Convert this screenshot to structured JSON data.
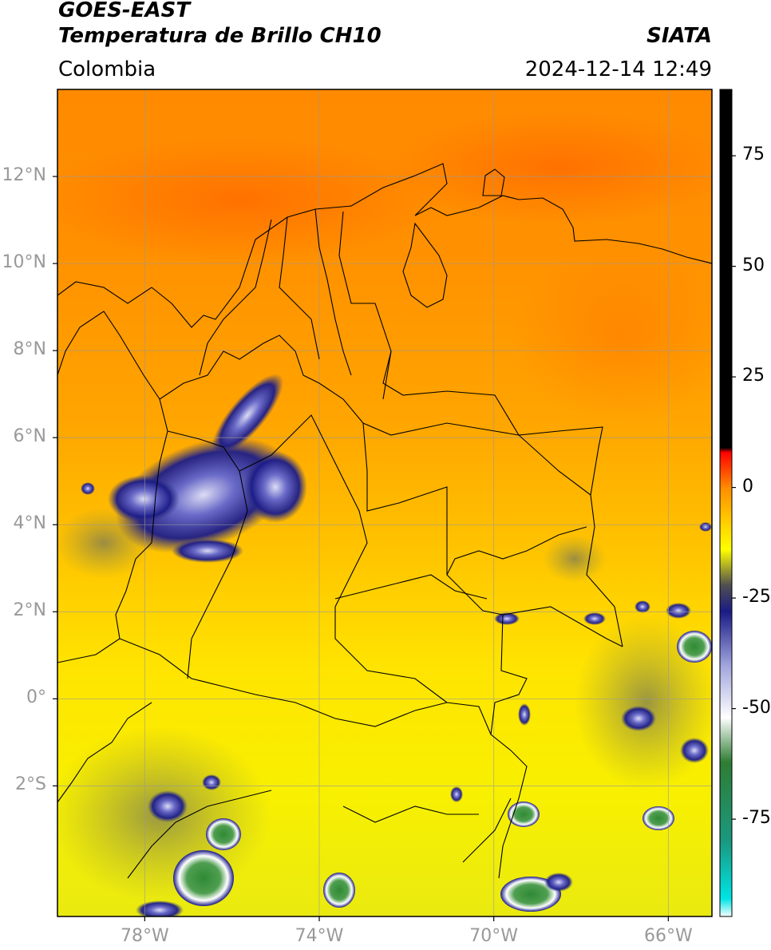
{
  "header": {
    "satellite": "GOES-EAST",
    "product": "Temperatura de Brillo CH10",
    "organization": "SIATA",
    "region": "Colombia",
    "datetime": "2024-12-14 12:49"
  },
  "map": {
    "lon_range": [
      -80,
      -65
    ],
    "lat_range": [
      -5,
      14
    ],
    "lat_ticks": [
      {
        "value": 12,
        "label": "12°N"
      },
      {
        "value": 10,
        "label": "10°N"
      },
      {
        "value": 8,
        "label": "8°N"
      },
      {
        "value": 6,
        "label": "6°N"
      },
      {
        "value": 4,
        "label": "4°N"
      },
      {
        "value": 2,
        "label": "2°N"
      },
      {
        "value": 0,
        "label": "0°"
      },
      {
        "value": -2,
        "label": "2°S"
      }
    ],
    "lon_ticks": [
      {
        "value": -78,
        "label": "78°W"
      },
      {
        "value": -74,
        "label": "74°W"
      },
      {
        "value": -70,
        "label": "70°W"
      },
      {
        "value": -66,
        "label": "66°W"
      }
    ],
    "grid": true
  },
  "colorbar": {
    "range": [
      -97,
      90
    ],
    "ticks": [
      {
        "value": 75,
        "label": "75"
      },
      {
        "value": 50,
        "label": "50"
      },
      {
        "value": 25,
        "label": "25"
      },
      {
        "value": 0,
        "label": "0"
      },
      {
        "value": -25,
        "label": "-25"
      },
      {
        "value": -50,
        "label": "-50"
      },
      {
        "value": -75,
        "label": "-75"
      }
    ],
    "stops": [
      {
        "value": -97,
        "color": "#ffffff"
      },
      {
        "value": -93,
        "color": "#00e5e5"
      },
      {
        "value": -80,
        "color": "#1a9980"
      },
      {
        "value": -62,
        "color": "#2e7d32"
      },
      {
        "value": -52,
        "color": "#ffffff"
      },
      {
        "value": -40,
        "color": "#9fa3dc"
      },
      {
        "value": -28,
        "color": "#1a1a85"
      },
      {
        "value": -22,
        "color": "#505050"
      },
      {
        "value": -14,
        "color": "#ffff00"
      },
      {
        "value": -8,
        "color": "#ffd000"
      },
      {
        "value": 0,
        "color": "#ff8c00"
      },
      {
        "value": 8,
        "color": "#ff0000"
      },
      {
        "value": 9,
        "color": "#000000"
      },
      {
        "value": 90,
        "color": "#000000"
      }
    ]
  }
}
